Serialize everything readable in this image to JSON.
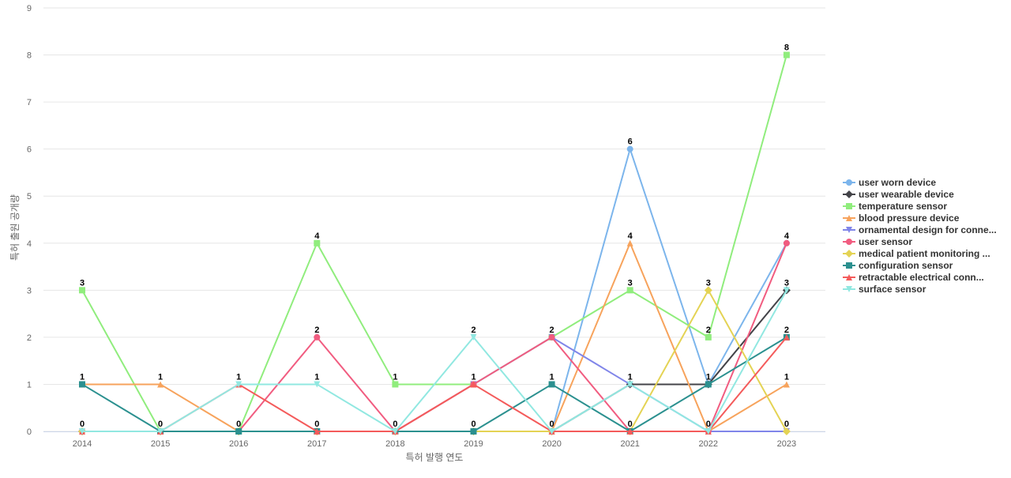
{
  "chart_data": {
    "type": "line",
    "title": "",
    "xlabel": "특허 발행 연도",
    "ylabel": "특허 출원 공개량",
    "x": [
      "2014",
      "2015",
      "2016",
      "2017",
      "2018",
      "2019",
      "2020",
      "2021",
      "2022",
      "2023"
    ],
    "ylim": [
      0,
      9
    ],
    "yticks": [
      0,
      1,
      2,
      3,
      4,
      5,
      6,
      7,
      8,
      9
    ],
    "grid": true,
    "legend_position": "right",
    "series": [
      {
        "name": "user worn device",
        "color": "#7cb5ec",
        "marker": "circle",
        "values": [
          0,
          0,
          0,
          0,
          0,
          0,
          0,
          6,
          1,
          4
        ]
      },
      {
        "name": "user wearable device",
        "color": "#434348",
        "marker": "diamond",
        "values": [
          0,
          0,
          0,
          0,
          0,
          0,
          0,
          1,
          1,
          3
        ]
      },
      {
        "name": "temperature sensor",
        "color": "#90ed7d",
        "marker": "square",
        "values": [
          3,
          0,
          0,
          4,
          1,
          1,
          2,
          3,
          2,
          8
        ]
      },
      {
        "name": "blood pressure device",
        "color": "#f7a35c",
        "marker": "triangle",
        "values": [
          1,
          1,
          0,
          0,
          0,
          0,
          0,
          4,
          0,
          1
        ]
      },
      {
        "name": "ornamental design for conne...",
        "color": "#8085e9",
        "marker": "triangle-down",
        "values": [
          0,
          0,
          0,
          0,
          0,
          1,
          2,
          1,
          0,
          0
        ]
      },
      {
        "name": "user sensor",
        "color": "#f15c80",
        "marker": "circle",
        "values": [
          0,
          0,
          0,
          2,
          0,
          1,
          2,
          0,
          0,
          4
        ]
      },
      {
        "name": "medical patient monitoring ...",
        "color": "#e4d354",
        "marker": "diamond",
        "values": [
          0,
          0,
          0,
          0,
          0,
          0,
          0,
          0,
          3,
          0
        ]
      },
      {
        "name": "configuration sensor",
        "color": "#2b908f",
        "marker": "square",
        "values": [
          1,
          0,
          0,
          0,
          0,
          0,
          1,
          0,
          1,
          2
        ]
      },
      {
        "name": "retractable electrical conn...",
        "color": "#f45b5b",
        "marker": "triangle",
        "values": [
          0,
          0,
          1,
          0,
          0,
          1,
          0,
          0,
          0,
          2
        ]
      },
      {
        "name": "surface sensor",
        "color": "#91e8e1",
        "marker": "triangle-down",
        "values": [
          0,
          0,
          1,
          1,
          0,
          2,
          0,
          1,
          0,
          3
        ]
      }
    ],
    "data_labels": [
      {
        "x": "2014",
        "text": "3",
        "y": 3
      },
      {
        "x": "2014",
        "text": "1",
        "y": 1
      },
      {
        "x": "2014",
        "text": "0",
        "y": 0
      },
      {
        "x": "2015",
        "text": "1",
        "y": 1
      },
      {
        "x": "2015",
        "text": "0",
        "y": 0
      },
      {
        "x": "2016",
        "text": "1",
        "y": 1
      },
      {
        "x": "2016",
        "text": "0",
        "y": 0
      },
      {
        "x": "2017",
        "text": "4",
        "y": 4
      },
      {
        "x": "2017",
        "text": "2",
        "y": 2
      },
      {
        "x": "2017",
        "text": "1",
        "y": 1
      },
      {
        "x": "2017",
        "text": "0",
        "y": 0
      },
      {
        "x": "2018",
        "text": "1",
        "y": 1
      },
      {
        "x": "2018",
        "text": "0",
        "y": 0
      },
      {
        "x": "2019",
        "text": "2",
        "y": 2
      },
      {
        "x": "2019",
        "text": "1",
        "y": 1
      },
      {
        "x": "2019",
        "text": "0",
        "y": 0
      },
      {
        "x": "2020",
        "text": "2",
        "y": 2
      },
      {
        "x": "2020",
        "text": "1",
        "y": 1
      },
      {
        "x": "2020",
        "text": "0",
        "y": 0
      },
      {
        "x": "2021",
        "text": "6",
        "y": 6
      },
      {
        "x": "2021",
        "text": "4",
        "y": 4
      },
      {
        "x": "2021",
        "text": "3",
        "y": 3
      },
      {
        "x": "2021",
        "text": "1",
        "y": 1
      },
      {
        "x": "2021",
        "text": "0",
        "y": 0
      },
      {
        "x": "2022",
        "text": "3",
        "y": 3
      },
      {
        "x": "2022",
        "text": "2",
        "y": 2
      },
      {
        "x": "2022",
        "text": "1",
        "y": 1
      },
      {
        "x": "2022",
        "text": "0",
        "y": 0
      },
      {
        "x": "2023",
        "text": "8",
        "y": 8
      },
      {
        "x": "2023",
        "text": "4",
        "y": 4
      },
      {
        "x": "2023",
        "text": "3",
        "y": 3
      },
      {
        "x": "2023",
        "text": "2",
        "y": 2
      },
      {
        "x": "2023",
        "text": "1",
        "y": 1
      },
      {
        "x": "2023",
        "text": "0",
        "y": 0
      }
    ]
  }
}
